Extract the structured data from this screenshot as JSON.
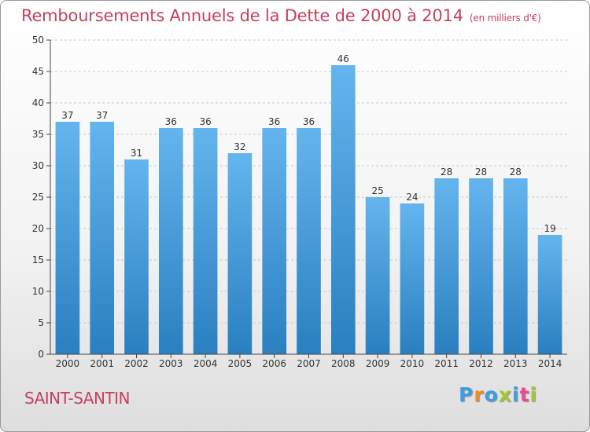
{
  "chart_data": {
    "type": "bar",
    "title": "Remboursements Annuels de la Dette de 2000 à 2014",
    "unit_note": "(en milliers d'€)",
    "categories": [
      "2000",
      "2001",
      "2002",
      "2003",
      "2004",
      "2005",
      "2006",
      "2007",
      "2008",
      "2009",
      "2010",
      "2011",
      "2012",
      "2013",
      "2014"
    ],
    "values": [
      37,
      37,
      31,
      36,
      36,
      32,
      36,
      36,
      46,
      25,
      24,
      28,
      28,
      28,
      19
    ],
    "ylim": [
      0,
      50
    ],
    "yticks": [
      0,
      5,
      10,
      15,
      20,
      25,
      30,
      35,
      40,
      45,
      50
    ],
    "grid": true,
    "xlabel": "",
    "ylabel": "",
    "colors": {
      "bar_light": "#64b5ee",
      "bar_dark": "#2a7fc0",
      "title": "#c4415e",
      "axis": "#444444"
    }
  },
  "footer": {
    "commune": "SAINT-SANTIN",
    "logo_letters": [
      "P",
      "r",
      "o",
      "x",
      "i",
      "t",
      "i"
    ]
  }
}
